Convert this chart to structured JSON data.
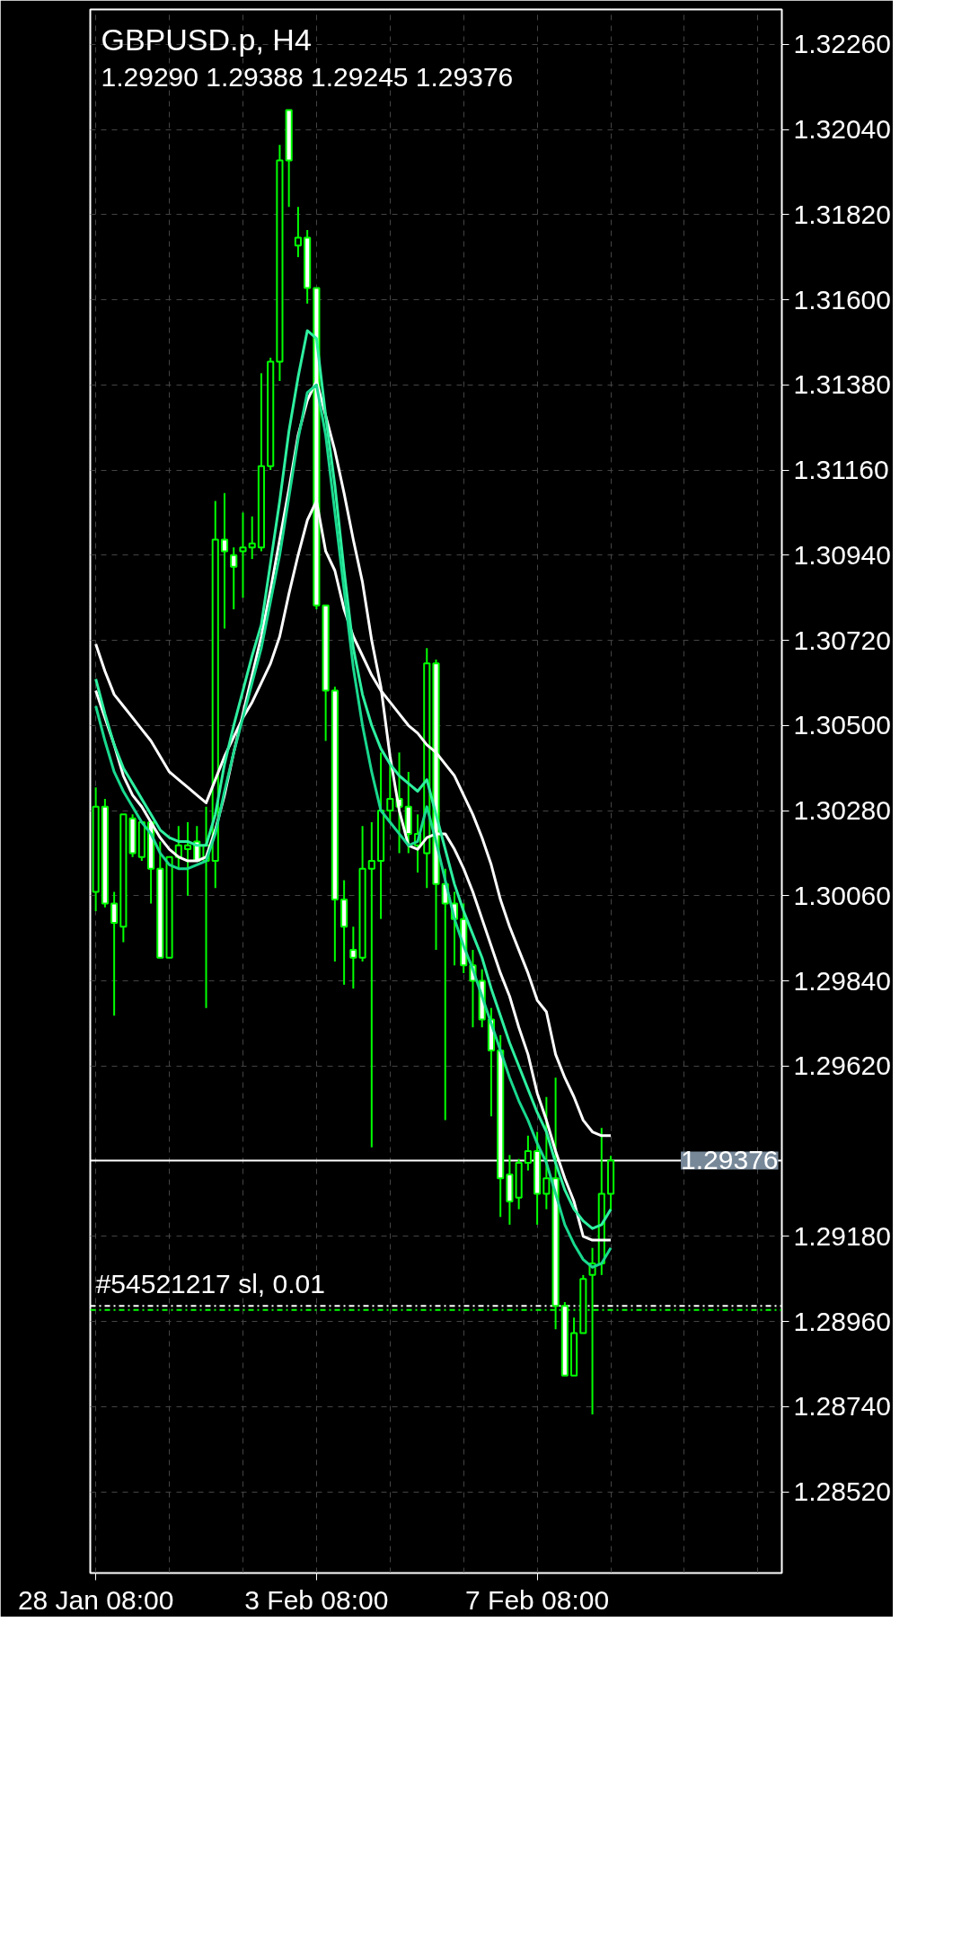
{
  "chart_data": {
    "type": "candlestick",
    "title": "GBPUSD.p, H4",
    "subtitle": "1.29290 1.29388 1.29245 1.29376",
    "categories": [
      "28 Jan 08:00",
      null,
      null,
      null,
      null,
      null,
      null,
      null,
      null,
      null,
      null,
      null,
      null,
      null,
      null,
      null,
      null,
      null,
      null,
      null,
      null,
      null,
      null,
      null,
      "3 Feb 08:00",
      null,
      null,
      null,
      null,
      null,
      null,
      null,
      null,
      null,
      null,
      null,
      null,
      null,
      null,
      null,
      null,
      null,
      null,
      null,
      null,
      null,
      null,
      null,
      "7 Feb 08:00",
      null,
      null,
      null,
      null,
      null,
      null,
      null,
      null,
      null,
      null,
      null,
      null,
      null,
      null,
      null,
      null,
      null,
      null,
      null,
      null,
      null,
      null,
      null,
      null,
      null,
      null
    ],
    "ohlc": [
      [
        1.3007,
        1.3034,
        1.3002,
        1.3029
      ],
      [
        1.3029,
        1.3031,
        1.3003,
        1.3004
      ],
      [
        1.3004,
        1.3007,
        1.2975,
        1.2999
      ],
      [
        1.2998,
        1.3027,
        1.2994,
        1.3027
      ],
      [
        1.3026,
        1.3027,
        1.3016,
        1.3017
      ],
      [
        1.3016,
        1.3025,
        1.3015,
        1.3025
      ],
      [
        1.3025,
        1.3025,
        1.3004,
        1.3013
      ],
      [
        1.3013,
        1.302,
        1.299,
        1.299
      ],
      [
        1.299,
        1.3016,
        1.299,
        1.3016
      ],
      [
        1.3016,
        1.3024,
        1.3013,
        1.3019
      ],
      [
        1.3018,
        1.3025,
        1.3006,
        1.3019
      ],
      [
        1.302,
        1.3024,
        1.3015,
        1.3015
      ],
      [
        1.3015,
        1.3029,
        1.2977,
        1.3019
      ],
      [
        1.3015,
        1.3108,
        1.3008,
        1.3098
      ],
      [
        1.3098,
        1.311,
        1.3075,
        1.3095
      ],
      [
        1.3094,
        1.3096,
        1.308,
        1.3091
      ],
      [
        1.3095,
        1.3105,
        1.3083,
        1.3096
      ],
      [
        1.3096,
        1.3104,
        1.3093,
        1.3097
      ],
      [
        1.3096,
        1.3141,
        1.3095,
        1.3117
      ],
      [
        1.3117,
        1.3145,
        1.3116,
        1.3144
      ],
      [
        1.3144,
        1.32,
        1.3139,
        1.3196
      ],
      [
        1.3209,
        1.3209,
        1.3184,
        1.3196
      ],
      [
        1.3174,
        1.3184,
        1.3171,
        1.3176
      ],
      [
        1.3176,
        1.3178,
        1.3159,
        1.3163
      ],
      [
        1.3163,
        1.3163,
        1.308,
        1.3081
      ],
      [
        1.3081,
        1.3081,
        1.3046,
        1.3059
      ],
      [
        1.3059,
        1.306,
        1.2989,
        1.3005
      ],
      [
        1.3005,
        1.301,
        1.2983,
        1.2998
      ],
      [
        1.2992,
        1.2998,
        1.2982,
        1.299
      ],
      [
        1.299,
        1.3024,
        1.2989,
        1.3013
      ],
      [
        1.3013,
        1.3025,
        1.2941,
        1.3015
      ],
      [
        1.3015,
        1.3043,
        1.3,
        1.3028
      ],
      [
        1.3028,
        1.304,
        1.3025,
        1.3031
      ],
      [
        1.3031,
        1.3043,
        1.3017,
        1.3029
      ],
      [
        1.3029,
        1.3038,
        1.3017,
        1.3022
      ],
      [
        1.3019,
        1.3027,
        1.3012,
        1.3022
      ],
      [
        1.3017,
        1.307,
        1.3008,
        1.3066
      ],
      [
        1.3066,
        1.3067,
        1.2992,
        1.3009
      ],
      [
        1.3009,
        1.3013,
        1.2948,
        1.3004
      ],
      [
        1.3004,
        1.3007,
        1.2988,
        1.3
      ],
      [
        1.3,
        1.3004,
        1.2986,
        1.2988
      ],
      [
        1.2988,
        1.2992,
        1.2972,
        1.2984
      ],
      [
        1.2984,
        1.2987,
        1.2972,
        1.2974
      ],
      [
        1.2974,
        1.2977,
        1.2949,
        1.2966
      ],
      [
        1.2966,
        1.297,
        1.2923,
        1.2933
      ],
      [
        1.2934,
        1.2939,
        1.2921,
        1.2927
      ],
      [
        1.2928,
        1.2938,
        1.2925,
        1.2937
      ],
      [
        1.2937,
        1.2944,
        1.2935,
        1.294
      ],
      [
        1.294,
        1.2945,
        1.2921,
        1.2929
      ],
      [
        1.2929,
        1.2954,
        1.2925,
        1.2933
      ],
      [
        1.2933,
        1.2959,
        1.2894,
        1.29
      ],
      [
        1.29,
        1.2901,
        1.2882,
        1.2882
      ],
      [
        1.2882,
        1.2897,
        1.2882,
        1.2893
      ],
      [
        1.2893,
        1.2908,
        1.2893,
        1.2907
      ],
      [
        1.2908,
        1.2915,
        1.2872,
        1.2911
      ],
      [
        1.2911,
        1.2946,
        1.2908,
        1.2929
      ],
      [
        1.2929,
        1.29388,
        1.29245,
        1.29376
      ],
      null,
      null,
      null,
      null,
      null,
      null,
      null,
      null,
      null,
      null,
      null,
      null,
      null,
      null,
      null,
      null,
      null,
      null
    ],
    "color": "#00ff00",
    "colors": [
      "#000000",
      "#ffffff",
      "#ffffff",
      "#000000",
      "#ffffff",
      "#000000",
      "#ffffff",
      "#ffffff",
      "#000000",
      "#000000",
      "#000000",
      "#ffffff",
      "#000000",
      "#000000",
      "#ffffff",
      "#ffffff",
      "#000000",
      "#000000",
      "#000000",
      "#000000",
      "#000000",
      "#ffffff",
      "#000000",
      "#ffffff",
      "#ffffff",
      "#ffffff",
      "#ffffff",
      "#ffffff",
      "#ffffff",
      "#000000",
      "#000000",
      "#000000",
      "#000000",
      "#ffffff",
      "#ffffff",
      "#000000",
      "#000000",
      "#ffffff",
      "#ffffff",
      "#ffffff",
      "#ffffff",
      "#ffffff",
      "#ffffff",
      "#ffffff",
      "#ffffff",
      "#ffffff",
      "#000000",
      "#000000",
      "#ffffff",
      "#000000",
      "#ffffff",
      "#ffffff",
      "#000000",
      "#000000",
      "#000000",
      "#000000",
      "#000000",
      null,
      null,
      null,
      null,
      null,
      null,
      null,
      null,
      null,
      null,
      null,
      null,
      null,
      null,
      null,
      null,
      null,
      null
    ],
    "series": [
      {
        "type": "line",
        "color": "#ffffff",
        "values": [
          1.3071,
          1.3064,
          1.3058,
          1.3055,
          1.3052,
          1.3049,
          1.3046,
          1.3042,
          1.3038,
          1.3036,
          1.3034,
          1.3032,
          1.303,
          1.3036,
          1.3042,
          1.3047,
          1.3052,
          1.3056,
          1.3061,
          1.3066,
          1.3073,
          1.3084,
          1.3094,
          1.3103,
          1.3108,
          1.3095,
          1.309,
          1.308,
          1.3073,
          1.3068,
          1.3063,
          1.3059,
          1.3056,
          1.3053,
          1.305,
          1.3048,
          1.3045,
          1.3043,
          1.304,
          1.3037,
          1.3032,
          1.3027,
          1.3021,
          1.3014,
          1.3005,
          1.2998,
          1.2992,
          1.2986,
          1.2979,
          1.2976,
          1.2965,
          1.2959,
          1.2954,
          1.2948,
          1.2945,
          1.2944,
          1.2944,
          null,
          null,
          null,
          null,
          null,
          null,
          null,
          null,
          null,
          null,
          null,
          null,
          null,
          null,
          null,
          null,
          null,
          null
        ]
      },
      {
        "type": "line",
        "color": "#ffffff",
        "values": [
          1.3059,
          1.3052,
          1.3045,
          1.3037,
          1.3032,
          1.3029,
          1.3025,
          1.3021,
          1.3018,
          1.3016,
          1.3015,
          1.3015,
          1.3016,
          1.3023,
          1.3032,
          1.3043,
          1.3053,
          1.3063,
          1.3073,
          1.3085,
          1.3098,
          1.3111,
          1.3125,
          1.3134,
          1.3139,
          1.313,
          1.3121,
          1.311,
          1.3098,
          1.3087,
          1.3072,
          1.306,
          1.3042,
          1.3028,
          1.3019,
          1.3018,
          1.3021,
          1.3022,
          1.3022,
          1.3018,
          1.3013,
          1.3007,
          1.3,
          1.2993,
          1.2986,
          1.298,
          1.2972,
          1.2965,
          1.2955,
          1.2948,
          1.294,
          1.2933,
          1.2927,
          1.2918,
          1.2917,
          1.2917,
          1.2917,
          null,
          null,
          null,
          null,
          null,
          null,
          null,
          null,
          null,
          null,
          null,
          null,
          null,
          null,
          null,
          null,
          null,
          null
        ]
      },
      {
        "type": "line",
        "color": "#2ef0a0",
        "values": [
          1.3062,
          1.3053,
          1.3045,
          1.3039,
          1.3035,
          1.3031,
          1.3027,
          1.3023,
          1.3021,
          1.302,
          1.302,
          1.3019,
          1.3019,
          1.3027,
          1.304,
          1.305,
          1.3059,
          1.3068,
          1.3076,
          1.3092,
          1.3108,
          1.3126,
          1.314,
          1.3152,
          1.315,
          1.313,
          1.3112,
          1.309,
          1.307,
          1.3058,
          1.305,
          1.3044,
          1.304,
          1.3037,
          1.3035,
          1.3033,
          1.3036,
          1.3027,
          1.3018,
          1.3009,
          1.3002,
          1.2996,
          1.299,
          1.2982,
          1.2975,
          1.2968,
          1.2962,
          1.2956,
          1.295,
          1.2945,
          1.2937,
          1.293,
          1.2925,
          1.2922,
          1.292,
          1.2921,
          1.2925,
          null,
          null,
          null,
          null,
          null,
          null,
          null,
          null,
          null,
          null,
          null,
          null,
          null,
          null,
          null,
          null,
          null,
          null
        ]
      },
      {
        "type": "line",
        "color": "#19d98e",
        "values": [
          1.3055,
          1.3046,
          1.3038,
          1.3033,
          1.3029,
          1.3025,
          1.3022,
          1.3017,
          1.3014,
          1.3013,
          1.3013,
          1.3014,
          1.3015,
          1.3022,
          1.3033,
          1.3043,
          1.3052,
          1.3061,
          1.307,
          1.3082,
          1.3094,
          1.3109,
          1.3124,
          1.3136,
          1.3138,
          1.3125,
          1.3105,
          1.3085,
          1.3065,
          1.305,
          1.3038,
          1.3028,
          1.3025,
          1.3022,
          1.3019,
          1.302,
          1.3029,
          1.302,
          1.301,
          1.3,
          1.2993,
          1.2987,
          1.298,
          1.2973,
          1.2966,
          1.2959,
          1.2953,
          1.2948,
          1.2942,
          1.2937,
          1.2929,
          1.2921,
          1.2916,
          1.2912,
          1.291,
          1.2911,
          1.2915,
          null,
          null,
          null,
          null,
          null,
          null,
          null,
          null,
          null,
          null,
          null,
          null,
          null,
          null,
          null,
          null,
          null,
          null
        ]
      }
    ],
    "ylim": [
      1.2831,
      1.3235
    ],
    "yticks": [
      {
        "value": 1.2852,
        "label": "1.28520"
      },
      {
        "value": 1.2874,
        "label": "1.28740"
      },
      {
        "value": 1.2896,
        "label": "1.28960"
      },
      {
        "value": 1.2918,
        "label": "1.29180"
      },
      {
        "value": 1.2962,
        "label": "1.29620"
      },
      {
        "value": 1.2984,
        "label": "1.29840"
      },
      {
        "value": 1.3006,
        "label": "1.30060"
      },
      {
        "value": 1.3028,
        "label": "1.30280"
      },
      {
        "value": 1.305,
        "label": "1.30500"
      },
      {
        "value": 1.3072,
        "label": "1.30720"
      },
      {
        "value": 1.3094,
        "label": "1.30940"
      },
      {
        "value": 1.3116,
        "label": "1.31160"
      },
      {
        "value": 1.3138,
        "label": "1.31380"
      },
      {
        "value": 1.316,
        "label": "1.31600"
      },
      {
        "value": 1.3182,
        "label": "1.31820"
      },
      {
        "value": 1.3204,
        "label": "1.32040"
      },
      {
        "value": 1.3226,
        "label": "1.32260"
      }
    ],
    "ref_lines": [
      {
        "axis": "y",
        "value": 1.29376,
        "label": "1.29376",
        "color": "#ffffff",
        "line_style": "solid"
      },
      {
        "axis": "y",
        "value": 1.29,
        "label": "#54521217 sl, 0.01",
        "color": "#ffffff",
        "line_style": "dashdot"
      },
      {
        "axis": "y",
        "value": 1.2899,
        "color": "#00ff00",
        "line_style": "dashdot"
      }
    ],
    "grid": true
  }
}
